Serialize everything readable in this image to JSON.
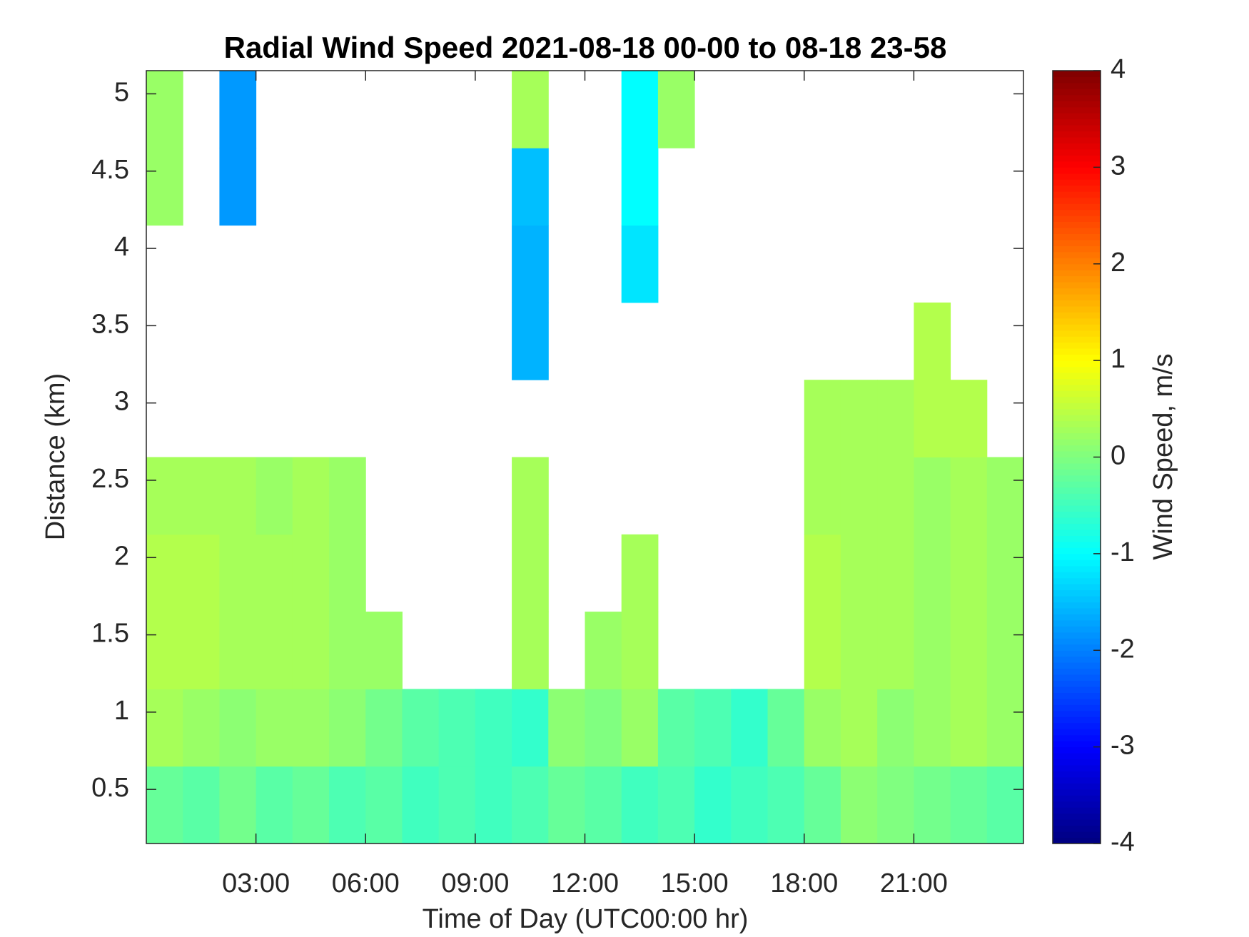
{
  "chart_data": {
    "type": "heatmap",
    "title": "Radial Wind Speed 2021-08-18 00-00 to 08-18 23-58",
    "x_label": "Time of Day (UTC00:00 hr)",
    "y_label": "Distance (km)",
    "colorbar_label": "Wind Speed, m/s",
    "colormap": "jet",
    "x": [
      0.5,
      1.5,
      2.5,
      3.5,
      4.5,
      5.5,
      6.5,
      7.5,
      8.5,
      9.5,
      10.5,
      11.5,
      12.5,
      13.5,
      14.5,
      15.5,
      16.5,
      17.5,
      18.5,
      19.5,
      20.5,
      21.5,
      22.5,
      23.5
    ],
    "y": [
      0.4,
      0.9,
      1.4,
      1.9,
      2.4,
      2.9,
      3.4,
      3.9,
      4.4,
      4.9
    ],
    "z": [
      [
        -0.2,
        -0.3,
        -0.1,
        -0.3,
        -0.2,
        -0.4,
        -0.3,
        -0.5,
        -0.4,
        -0.5,
        -0.4,
        -0.2,
        -0.3,
        -0.5,
        -0.4,
        -0.6,
        -0.5,
        -0.4,
        -0.2,
        0.1,
        0.0,
        -0.1,
        -0.2,
        -0.3
      ],
      [
        0.3,
        0.2,
        0.1,
        0.2,
        0.2,
        0.1,
        -0.1,
        -0.3,
        -0.4,
        -0.5,
        -0.6,
        0.1,
        0.0,
        0.2,
        -0.3,
        -0.4,
        -0.6,
        -0.2,
        0.2,
        0.3,
        0.1,
        0.2,
        0.3,
        0.2
      ],
      [
        0.4,
        0.4,
        0.3,
        0.3,
        0.3,
        0.2,
        0.2,
        null,
        null,
        null,
        0.3,
        null,
        0.2,
        0.3,
        null,
        null,
        null,
        null,
        0.4,
        0.3,
        0.3,
        0.2,
        0.3,
        0.2
      ],
      [
        0.4,
        0.4,
        0.3,
        0.3,
        0.3,
        0.2,
        null,
        null,
        null,
        null,
        0.3,
        null,
        null,
        0.3,
        null,
        null,
        null,
        null,
        0.4,
        0.3,
        0.3,
        0.2,
        0.3,
        0.2
      ],
      [
        0.3,
        0.3,
        0.3,
        0.2,
        0.3,
        0.2,
        null,
        null,
        null,
        null,
        0.3,
        null,
        null,
        null,
        null,
        null,
        null,
        null,
        0.3,
        0.3,
        0.3,
        0.2,
        0.3,
        0.2
      ],
      [
        null,
        null,
        null,
        null,
        null,
        null,
        null,
        null,
        null,
        null,
        null,
        null,
        null,
        null,
        null,
        null,
        null,
        null,
        0.3,
        0.3,
        0.3,
        0.4,
        0.4,
        null
      ],
      [
        null,
        null,
        null,
        null,
        null,
        null,
        null,
        null,
        null,
        null,
        -1.6,
        null,
        null,
        null,
        null,
        null,
        null,
        null,
        null,
        null,
        null,
        0.4,
        null,
        null
      ],
      [
        null,
        null,
        null,
        null,
        null,
        null,
        null,
        null,
        null,
        null,
        -1.6,
        null,
        null,
        -1.2,
        null,
        null,
        null,
        null,
        null,
        null,
        null,
        null,
        null,
        null
      ],
      [
        0.2,
        null,
        -1.8,
        null,
        null,
        null,
        null,
        null,
        null,
        null,
        -1.5,
        null,
        null,
        -1.0,
        null,
        null,
        null,
        null,
        null,
        null,
        null,
        null,
        null,
        null
      ],
      [
        0.2,
        null,
        -1.8,
        null,
        null,
        null,
        null,
        null,
        null,
        null,
        0.3,
        null,
        null,
        -1.0,
        0.2,
        null,
        null,
        null,
        null,
        null,
        null,
        null,
        null,
        null
      ]
    ],
    "xlim": [
      0,
      24
    ],
    "xticks": [
      {
        "value": 3,
        "label": "03:00"
      },
      {
        "value": 6,
        "label": "06:00"
      },
      {
        "value": 9,
        "label": "09:00"
      },
      {
        "value": 12,
        "label": "12:00"
      },
      {
        "value": 15,
        "label": "15:00"
      },
      {
        "value": 18,
        "label": "18:00"
      },
      {
        "value": 21,
        "label": "21:00"
      }
    ],
    "ylim": [
      0.15,
      5.15
    ],
    "yticks": [
      0.5,
      1,
      1.5,
      2,
      2.5,
      3,
      3.5,
      4,
      4.5,
      5
    ],
    "clim": [
      -4,
      4
    ],
    "cticks": [
      -4,
      -3,
      -2,
      -1,
      0,
      1,
      2,
      3,
      4
    ]
  }
}
